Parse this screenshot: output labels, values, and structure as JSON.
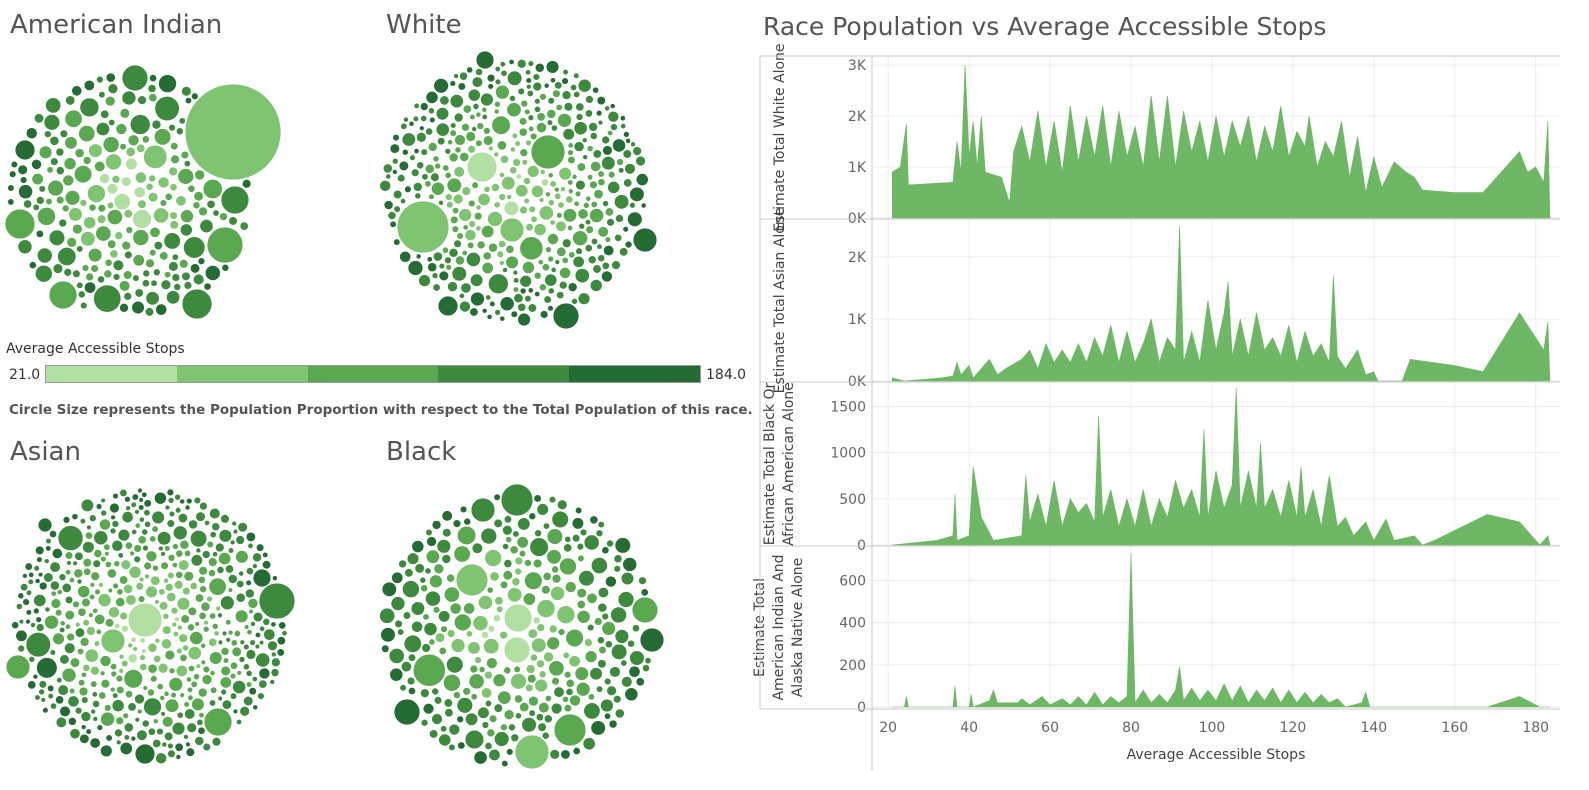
{
  "bubble_titles": [
    "American Indian",
    "White",
    "Asian",
    "Black"
  ],
  "legend": {
    "title": "Average Accessible Stops",
    "min": "21.0",
    "max": "184.0",
    "colors": [
      "#b2e0a3",
      "#7fc571",
      "#5aa84f",
      "#3d8a3e",
      "#246b34"
    ]
  },
  "note": "Circle Size represents the Population Proportion with respect to the Total Population of this race.",
  "chart_title": "Race Population vs Average Accessible Stops",
  "chart_data": {
    "type": "area",
    "x_label": "Average Accessible Stops",
    "xlim": [
      16,
      186
    ],
    "x_ticks": [
      20,
      40,
      60,
      80,
      100,
      120,
      140,
      160,
      180
    ],
    "fill_color": "#6db765",
    "panels": [
      {
        "ylabel": "Estimate Total White Alone",
        "ylim": [
          0,
          3100
        ],
        "y_ticks": [
          0,
          1000,
          2000,
          3000
        ],
        "y_tick_labels": [
          "0K",
          "1K",
          "2K",
          "3K"
        ],
        "series": [
          [
            21,
            900
          ],
          [
            23,
            1000
          ],
          [
            24.5,
            1850
          ],
          [
            25,
            650
          ],
          [
            36,
            700
          ],
          [
            37,
            1500
          ],
          [
            38,
            900
          ],
          [
            39,
            3000
          ],
          [
            40,
            1200
          ],
          [
            41,
            1900
          ],
          [
            42,
            1000
          ],
          [
            43,
            2000
          ],
          [
            44,
            900
          ],
          [
            48,
            800
          ],
          [
            50,
            300
          ],
          [
            51,
            1300
          ],
          [
            53,
            1800
          ],
          [
            55,
            1100
          ],
          [
            57,
            2100
          ],
          [
            59,
            1000
          ],
          [
            61,
            1900
          ],
          [
            63,
            900
          ],
          [
            65,
            2200
          ],
          [
            67,
            1100
          ],
          [
            69,
            2000
          ],
          [
            71,
            1200
          ],
          [
            73,
            2200
          ],
          [
            75,
            1000
          ],
          [
            77,
            2100
          ],
          [
            79,
            1200
          ],
          [
            81,
            1800
          ],
          [
            83,
            1000
          ],
          [
            85,
            2400
          ],
          [
            87,
            1100
          ],
          [
            89,
            2400
          ],
          [
            91,
            1000
          ],
          [
            93,
            2100
          ],
          [
            95,
            1300
          ],
          [
            97,
            1900
          ],
          [
            99,
            1100
          ],
          [
            101,
            2000
          ],
          [
            103,
            1200
          ],
          [
            105,
            1900
          ],
          [
            107,
            1400
          ],
          [
            109,
            2000
          ],
          [
            111,
            1100
          ],
          [
            113,
            1800
          ],
          [
            115,
            1300
          ],
          [
            117,
            2200
          ],
          [
            119,
            1200
          ],
          [
            121,
            1700
          ],
          [
            123,
            1400
          ],
          [
            124,
            2000
          ],
          [
            126,
            1000
          ],
          [
            128,
            1500
          ],
          [
            130,
            1200
          ],
          [
            132,
            1900
          ],
          [
            134,
            800
          ],
          [
            136,
            1600
          ],
          [
            138,
            500
          ],
          [
            140,
            1200
          ],
          [
            142,
            600
          ],
          [
            145,
            1100
          ],
          [
            148,
            900
          ],
          [
            150,
            800
          ],
          [
            152,
            550
          ],
          [
            160,
            500
          ],
          [
            167,
            500
          ],
          [
            176,
            1300
          ],
          [
            178,
            900
          ],
          [
            180,
            1000
          ],
          [
            182,
            700
          ],
          [
            183,
            1900
          ],
          [
            183.5,
            0
          ]
        ]
      },
      {
        "ylabel": "Estimate Total Asian Alone",
        "ylim": [
          0,
          2500
        ],
        "y_ticks": [
          0,
          1000,
          2000
        ],
        "y_tick_labels": [
          "0K",
          "1K",
          "2K"
        ],
        "series": [
          [
            21,
            50
          ],
          [
            24,
            0
          ],
          [
            33,
            50
          ],
          [
            36,
            80
          ],
          [
            37,
            300
          ],
          [
            38,
            100
          ],
          [
            40,
            250
          ],
          [
            41,
            50
          ],
          [
            45,
            350
          ],
          [
            47,
            100
          ],
          [
            49,
            200
          ],
          [
            53,
            350
          ],
          [
            55,
            500
          ],
          [
            57,
            200
          ],
          [
            59,
            600
          ],
          [
            61,
            300
          ],
          [
            63,
            500
          ],
          [
            65,
            300
          ],
          [
            67,
            600
          ],
          [
            69,
            300
          ],
          [
            71,
            700
          ],
          [
            73,
            400
          ],
          [
            75,
            900
          ],
          [
            77,
            300
          ],
          [
            79,
            800
          ],
          [
            81,
            300
          ],
          [
            83,
            600
          ],
          [
            85,
            1000
          ],
          [
            87,
            300
          ],
          [
            89,
            700
          ],
          [
            91,
            500
          ],
          [
            92,
            2500
          ],
          [
            93,
            300
          ],
          [
            95,
            800
          ],
          [
            97,
            300
          ],
          [
            99,
            1300
          ],
          [
            101,
            500
          ],
          [
            103,
            1100
          ],
          [
            104,
            1600
          ],
          [
            105,
            400
          ],
          [
            107,
            1000
          ],
          [
            109,
            400
          ],
          [
            111,
            1100
          ],
          [
            113,
            500
          ],
          [
            115,
            700
          ],
          [
            117,
            400
          ],
          [
            119,
            900
          ],
          [
            121,
            300
          ],
          [
            123,
            800
          ],
          [
            125,
            400
          ],
          [
            127,
            600
          ],
          [
            129,
            300
          ],
          [
            130,
            1700
          ],
          [
            131,
            400
          ],
          [
            133,
            200
          ],
          [
            136,
            500
          ],
          [
            138,
            100
          ],
          [
            140,
            150
          ],
          [
            141,
            0
          ],
          [
            147,
            0
          ],
          [
            149,
            350
          ],
          [
            160,
            250
          ],
          [
            167,
            150
          ],
          [
            176,
            1100
          ],
          [
            182,
            500
          ],
          [
            183,
            950
          ],
          [
            183.5,
            0
          ]
        ]
      },
      {
        "ylabel": "Estimate Total Black Or African American Alone",
        "ylim": [
          0,
          1700
        ],
        "y_ticks": [
          0,
          500,
          1000,
          1500
        ],
        "y_tick_labels": [
          "0",
          "500",
          "1000",
          "1500"
        ],
        "series": [
          [
            21,
            0
          ],
          [
            32,
            50
          ],
          [
            36,
            100
          ],
          [
            36.5,
            550
          ],
          [
            37,
            50
          ],
          [
            40,
            100
          ],
          [
            41,
            850
          ],
          [
            43,
            300
          ],
          [
            46,
            50
          ],
          [
            53,
            100
          ],
          [
            54,
            750
          ],
          [
            55,
            250
          ],
          [
            57,
            550
          ],
          [
            59,
            200
          ],
          [
            61,
            700
          ],
          [
            63,
            200
          ],
          [
            65,
            500
          ],
          [
            67,
            350
          ],
          [
            69,
            450
          ],
          [
            71,
            250
          ],
          [
            72,
            1400
          ],
          [
            73,
            300
          ],
          [
            75,
            600
          ],
          [
            77,
            200
          ],
          [
            79,
            500
          ],
          [
            81,
            200
          ],
          [
            83,
            600
          ],
          [
            85,
            200
          ],
          [
            87,
            500
          ],
          [
            89,
            300
          ],
          [
            91,
            700
          ],
          [
            93,
            400
          ],
          [
            95,
            600
          ],
          [
            97,
            300
          ],
          [
            98,
            1250
          ],
          [
            99,
            300
          ],
          [
            101,
            800
          ],
          [
            103,
            400
          ],
          [
            105,
            650
          ],
          [
            106,
            1700
          ],
          [
            107,
            400
          ],
          [
            109,
            800
          ],
          [
            111,
            400
          ],
          [
            112,
            1100
          ],
          [
            113,
            400
          ],
          [
            115,
            600
          ],
          [
            117,
            300
          ],
          [
            119,
            700
          ],
          [
            121,
            300
          ],
          [
            122,
            850
          ],
          [
            123,
            300
          ],
          [
            125,
            600
          ],
          [
            127,
            200
          ],
          [
            129,
            750
          ],
          [
            131,
            200
          ],
          [
            133,
            300
          ],
          [
            135,
            100
          ],
          [
            138,
            250
          ],
          [
            140,
            50
          ],
          [
            143,
            280
          ],
          [
            145,
            50
          ],
          [
            150,
            100
          ],
          [
            152,
            0
          ],
          [
            155,
            50
          ],
          [
            168,
            330
          ],
          [
            176,
            250
          ],
          [
            181,
            0
          ],
          [
            183,
            100
          ],
          [
            183.5,
            0
          ]
        ]
      },
      {
        "ylabel": "Estimate Total American Indian And Alaska Native Alone",
        "ylim": [
          0,
          740
        ],
        "y_ticks": [
          0,
          200,
          400,
          600
        ],
        "y_tick_labels": [
          "0",
          "200",
          "400",
          "600"
        ],
        "series": [
          [
            21,
            0
          ],
          [
            24,
            0
          ],
          [
            24.5,
            50
          ],
          [
            25,
            0
          ],
          [
            36,
            0
          ],
          [
            36.5,
            100
          ],
          [
            37,
            0
          ],
          [
            40,
            0
          ],
          [
            40.5,
            60
          ],
          [
            41,
            0
          ],
          [
            45,
            30
          ],
          [
            46,
            80
          ],
          [
            47,
            20
          ],
          [
            52,
            20
          ],
          [
            53,
            40
          ],
          [
            55,
            10
          ],
          [
            58,
            50
          ],
          [
            60,
            10
          ],
          [
            63,
            40
          ],
          [
            65,
            10
          ],
          [
            67,
            50
          ],
          [
            69,
            10
          ],
          [
            71,
            70
          ],
          [
            73,
            10
          ],
          [
            75,
            50
          ],
          [
            77,
            20
          ],
          [
            79,
            50
          ],
          [
            80,
            730
          ],
          [
            81,
            20
          ],
          [
            83,
            80
          ],
          [
            85,
            20
          ],
          [
            87,
            60
          ],
          [
            89,
            20
          ],
          [
            91,
            80
          ],
          [
            92,
            190
          ],
          [
            93,
            30
          ],
          [
            95,
            90
          ],
          [
            97,
            30
          ],
          [
            99,
            80
          ],
          [
            101,
            30
          ],
          [
            103,
            110
          ],
          [
            105,
            30
          ],
          [
            107,
            100
          ],
          [
            109,
            20
          ],
          [
            111,
            80
          ],
          [
            113,
            30
          ],
          [
            115,
            90
          ],
          [
            117,
            20
          ],
          [
            119,
            80
          ],
          [
            121,
            20
          ],
          [
            123,
            70
          ],
          [
            125,
            20
          ],
          [
            127,
            60
          ],
          [
            129,
            20
          ],
          [
            131,
            40
          ],
          [
            133,
            0
          ],
          [
            137,
            20
          ],
          [
            138,
            70
          ],
          [
            139,
            0
          ],
          [
            168,
            0
          ],
          [
            176,
            50
          ],
          [
            181,
            0
          ],
          [
            183.5,
            0
          ]
        ]
      }
    ]
  }
}
